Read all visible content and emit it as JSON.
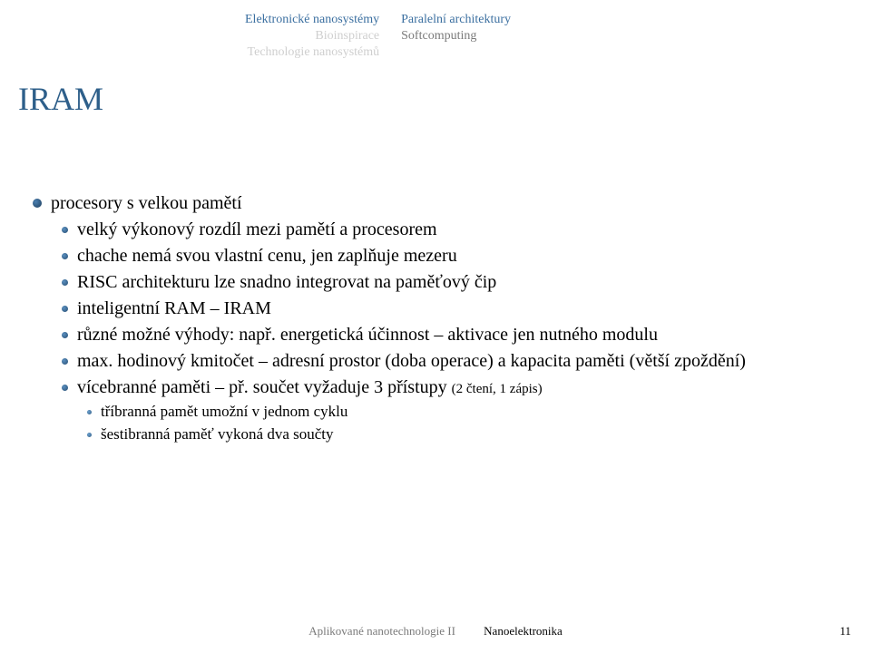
{
  "header": {
    "left": [
      {
        "text": "Elektronické nanosystémy",
        "style": "link"
      },
      {
        "text": "Bioinspirace",
        "style": "muted"
      },
      {
        "text": "Technologie nanosystémů",
        "style": "muted"
      }
    ],
    "right": [
      {
        "text": "Paralelní architektury",
        "style": "link"
      },
      {
        "text": "Softcomputing",
        "style": "active"
      }
    ]
  },
  "title": "IRAM",
  "bullets": [
    {
      "level": 1,
      "text": "procesory s velkou pamětí"
    },
    {
      "level": 2,
      "text": "velký výkonový rozdíl mezi pamětí a procesorem"
    },
    {
      "level": 2,
      "text": "chache nemá svou vlastní cenu, jen zaplňuje mezeru"
    },
    {
      "level": 2,
      "text": "RISC architekturu lze snadno integrovat na paměťový čip"
    },
    {
      "level": 2,
      "text": "inteligentní RAM – IRAM"
    },
    {
      "level": 2,
      "text": "různé možné výhody: např. energetická účinnost – aktivace jen nutného modulu"
    },
    {
      "level": 2,
      "text": "max. hodinový kmitočet – adresní prostor (doba operace) a kapacita paměti (větší zpoždění)"
    },
    {
      "level": 2,
      "html": "vícebranné paměti – př. součet vyžaduje 3 přístupy <span class=\"small\">(2 čtení, 1 zápis)</span>"
    },
    {
      "level": 3,
      "text": "tříbranná pamět umožní v jednom cyklu"
    },
    {
      "level": 3,
      "text": "šestibranná paměť vykoná dva součty"
    }
  ],
  "footer": {
    "left": "Aplikované nanotechnologie II",
    "right": "Nanoelektronika",
    "page": "11"
  },
  "styles": {
    "link_color": "#3b6fa0",
    "muted_color": "#cfcfcf",
    "active_color": "#7a7a7a",
    "title_color": "#2e5f8a",
    "background": "#ffffff"
  }
}
